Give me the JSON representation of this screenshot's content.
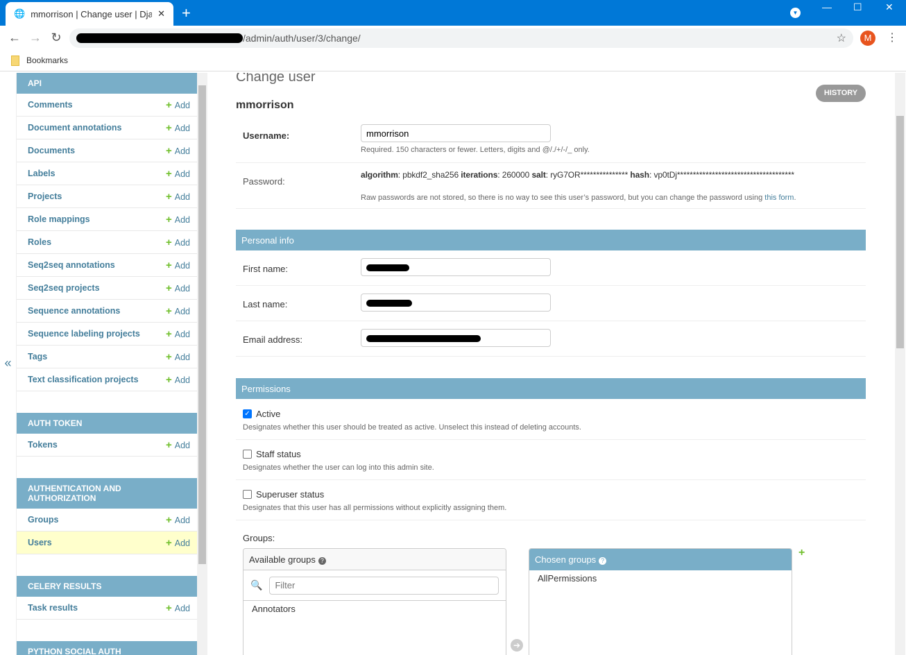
{
  "browser": {
    "tab_title": "mmorrison | Change user | Django",
    "url_path": "/admin/auth/user/3/change/",
    "bookmarks_label": "Bookmarks",
    "profile_initial": "M"
  },
  "sidebar": {
    "modules": [
      {
        "title": "API",
        "items": [
          {
            "label": "Comments"
          },
          {
            "label": "Document annotations"
          },
          {
            "label": "Documents"
          },
          {
            "label": "Labels"
          },
          {
            "label": "Projects"
          },
          {
            "label": "Role mappings"
          },
          {
            "label": "Roles"
          },
          {
            "label": "Seq2seq annotations"
          },
          {
            "label": "Seq2seq projects"
          },
          {
            "label": "Sequence annotations"
          },
          {
            "label": "Sequence labeling projects"
          },
          {
            "label": "Tags"
          },
          {
            "label": "Text classification projects"
          }
        ]
      },
      {
        "title": "AUTH TOKEN",
        "items": [
          {
            "label": "Tokens"
          }
        ]
      },
      {
        "title": "AUTHENTICATION AND AUTHORIZATION",
        "items": [
          {
            "label": "Groups"
          },
          {
            "label": "Users",
            "selected": true
          }
        ]
      },
      {
        "title": "CELERY RESULTS",
        "items": [
          {
            "label": "Task results"
          }
        ]
      },
      {
        "title": "PYTHON SOCIAL AUTH",
        "items": []
      }
    ],
    "add_label": "Add",
    "collapse_label": "«"
  },
  "main": {
    "title": "Change user",
    "history": "HISTORY",
    "object_name": "mmorrison",
    "username": {
      "label": "Username:",
      "value": "mmorrison",
      "help": "Required. 150 characters or fewer. Letters, digits and @/./+/-/_ only."
    },
    "password": {
      "label": "Password:",
      "algorithm_key": "algorithm",
      "algorithm": "pbkdf2_sha256",
      "iterations_key": "iterations",
      "iterations": "260000",
      "salt_key": "salt",
      "salt": "ryG7OR***************",
      "hash_key": "hash",
      "hash": "vp0tDj*************************************",
      "help": "Raw passwords are not stored, so there is no way to see this user’s password, but you can change the password using ",
      "help_link": "this form",
      "help_end": "."
    },
    "personal": {
      "title": "Personal info",
      "first_name": "First name:",
      "last_name": "Last name:",
      "email": "Email address:"
    },
    "permissions": {
      "title": "Permissions",
      "active": {
        "label": "Active",
        "checked": true,
        "help": "Designates whether this user should be treated as active. Unselect this instead of deleting accounts."
      },
      "staff": {
        "label": "Staff status",
        "checked": false,
        "help": "Designates whether the user can log into this admin site."
      },
      "superuser": {
        "label": "Superuser status",
        "checked": false,
        "help": "Designates that this user has all permissions without explicitly assigning them."
      },
      "groups_label": "Groups:",
      "available_title": "Available groups",
      "filter_placeholder": "Filter",
      "available": [
        "Annotators"
      ],
      "chosen_title": "Chosen groups",
      "chosen": [
        "AllPermissions"
      ]
    }
  },
  "colors": {
    "module_header": "#79aec8",
    "link": "#447e9b",
    "add": "#70bf2b",
    "selected_row": "#ffffcc",
    "browser_blue": "#0078d7"
  }
}
